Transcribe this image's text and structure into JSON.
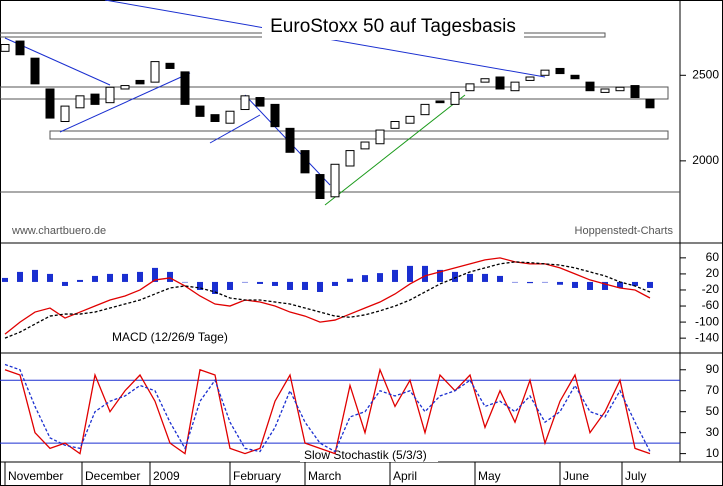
{
  "chart_data": [
    {
      "type": "candlestick",
      "title": "EuroStoxx 50 auf Tagesbasis",
      "source": "www.chartbuero.de",
      "credit": "Hoppenstedt-Charts",
      "months": [
        "November",
        "December",
        "2009",
        "February",
        "March",
        "April",
        "May",
        "June",
        "July"
      ],
      "open": [
        2640,
        2700,
        2600,
        2420,
        2230,
        2310,
        2390,
        2340,
        2420,
        2470,
        2460,
        2570,
        2520,
        2320,
        2270,
        2220,
        2300,
        2370,
        2330,
        2190,
        2060,
        1920,
        1790,
        1970,
        2070,
        2100,
        2190,
        2220,
        2270,
        2350,
        2330,
        2410,
        2460,
        2490,
        2410,
        2470,
        2500,
        2540,
        2500,
        2460,
        2400,
        2410,
        2440,
        2360
      ],
      "close": [
        2680,
        2620,
        2450,
        2250,
        2320,
        2380,
        2330,
        2430,
        2440,
        2450,
        2580,
        2540,
        2330,
        2260,
        2230,
        2290,
        2380,
        2320,
        2200,
        2050,
        1930,
        1780,
        1980,
        2060,
        2110,
        2180,
        2230,
        2260,
        2330,
        2340,
        2400,
        2450,
        2480,
        2420,
        2460,
        2490,
        2530,
        2510,
        2480,
        2410,
        2420,
        2430,
        2370,
        2310
      ],
      "ylim": [
        1520,
        2940
      ],
      "yticks": [
        2000,
        2500
      ]
    },
    {
      "type": "macd",
      "label": "MACD (12/26/9 Tage)",
      "series": [
        {
          "color": "#e00000",
          "values": [
            -130,
            -100,
            -75,
            -65,
            -90,
            -75,
            -60,
            -45,
            -35,
            -20,
            5,
            10,
            -10,
            -35,
            -55,
            -60,
            -45,
            -50,
            -60,
            -75,
            -85,
            -100,
            -95,
            -80,
            -65,
            -50,
            -30,
            -5,
            15,
            25,
            35,
            45,
            55,
            60,
            50,
            45,
            45,
            35,
            20,
            5,
            -5,
            -15,
            -20,
            -40
          ]
        },
        {
          "color": "#000000",
          "dashed": true,
          "values": [
            -140,
            -125,
            -105,
            -85,
            -80,
            -80,
            -75,
            -65,
            -55,
            -45,
            -30,
            -15,
            -10,
            -15,
            -25,
            -40,
            -45,
            -45,
            -50,
            -55,
            -65,
            -75,
            -85,
            -88,
            -82,
            -72,
            -60,
            -45,
            -25,
            -5,
            10,
            25,
            35,
            45,
            50,
            48,
            45,
            42,
            35,
            25,
            15,
            0,
            -10,
            -25
          ]
        }
      ],
      "histogram": {
        "color": "#1a2fd0",
        "values": [
          10,
          25,
          30,
          20,
          -10,
          5,
          15,
          20,
          20,
          25,
          35,
          25,
          0,
          -20,
          -30,
          -20,
          0,
          -5,
          -10,
          -20,
          -20,
          -25,
          -10,
          8,
          17,
          22,
          30,
          40,
          40,
          30,
          25,
          20,
          20,
          15,
          0,
          -3,
          0,
          -7,
          -15,
          -20,
          -20,
          -15,
          -10,
          -15
        ]
      },
      "ylim": [
        -177,
        97
      ],
      "yticks": [
        60,
        20,
        -20,
        -60,
        -100,
        -140
      ]
    },
    {
      "type": "stochastic",
      "label": "Slow Stochastik (5/3/3)",
      "series": [
        {
          "color": "#e00000",
          "values": [
            90,
            85,
            30,
            15,
            20,
            10,
            85,
            50,
            70,
            85,
            60,
            20,
            10,
            90,
            85,
            15,
            10,
            15,
            60,
            85,
            20,
            15,
            10,
            75,
            30,
            90,
            55,
            80,
            30,
            85,
            70,
            85,
            35,
            70,
            40,
            80,
            20,
            60,
            85,
            30,
            50,
            80,
            15,
            10
          ]
        },
        {
          "color": "#1a2fd0",
          "dashed": true,
          "values": [
            95,
            90,
            55,
            25,
            18,
            15,
            50,
            60,
            65,
            75,
            70,
            40,
            15,
            60,
            80,
            40,
            15,
            12,
            35,
            70,
            40,
            20,
            12,
            45,
            50,
            70,
            65,
            70,
            50,
            65,
            70,
            80,
            55,
            60,
            50,
            65,
            40,
            50,
            75,
            50,
            45,
            70,
            40,
            12
          ]
        }
      ],
      "levels": [
        80,
        20
      ],
      "level_color": "#1a2fd0",
      "ylim": [
        2,
        106
      ],
      "yticks": [
        90,
        70,
        50,
        30,
        10
      ]
    }
  ]
}
